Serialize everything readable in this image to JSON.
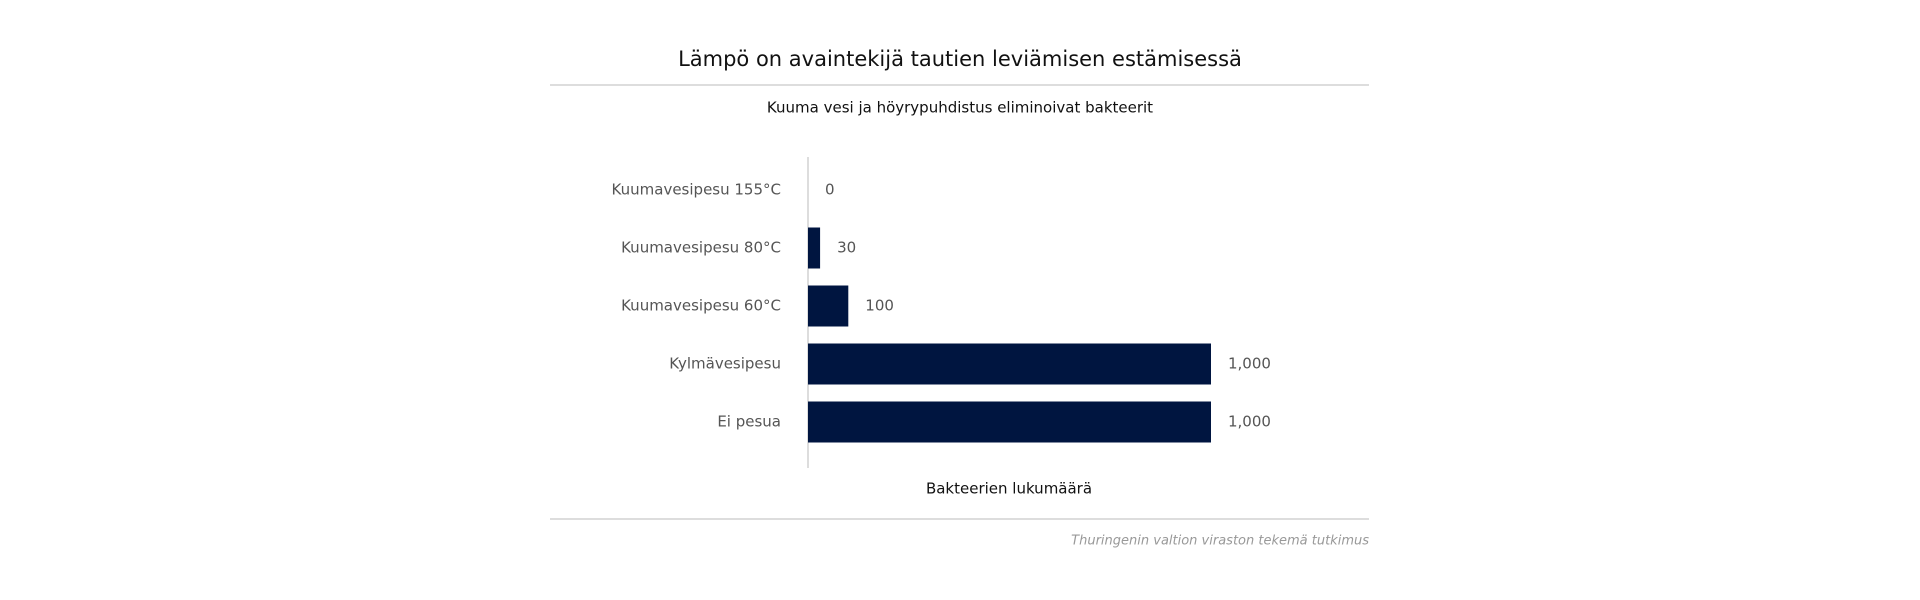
{
  "chart_data": {
    "type": "hbar",
    "title": "Lämpö on avaintekijä tautien leviämisen estämisessä",
    "subtitle": "Kuuma vesi ja höyrypuhdistus eliminoivat bakteerit",
    "x_label": "Bakteerien lukumäärä",
    "source": "Thuringenin valtion viraston tekemä tutkimus",
    "categories": [
      "Kuumavesipesu 155°C",
      "Kuumavesipesu 80°C",
      "Kuumavesipesu 60°C",
      "Kylmävesipesu",
      "Ei pesua"
    ],
    "values": [
      0,
      30,
      100,
      1000,
      1000
    ],
    "value_labels": [
      "0",
      "30",
      "100",
      "1,000",
      "1,000"
    ],
    "color": "#001540",
    "xlim": [
      0,
      1000
    ]
  }
}
